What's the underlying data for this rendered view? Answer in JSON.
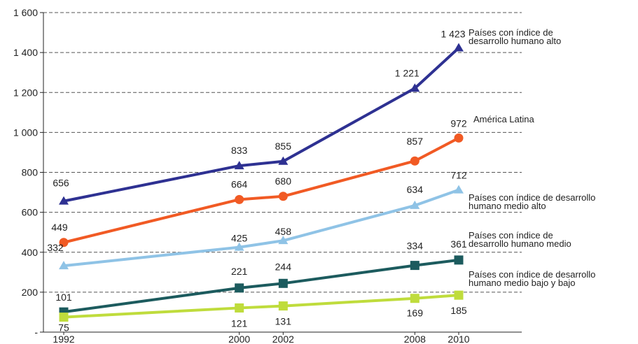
{
  "chart_data": {
    "type": "line",
    "x": [
      1992,
      2000,
      2002,
      2008,
      2010
    ],
    "ylim": [
      0,
      1600
    ],
    "y_ticks": [
      {
        "value": 0,
        "label": "-"
      },
      {
        "value": 200,
        "label": "200"
      },
      {
        "value": 400,
        "label": "400"
      },
      {
        "value": 600,
        "label": "600"
      },
      {
        "value": 800,
        "label": "800"
      },
      {
        "value": 1000,
        "label": "1 000"
      },
      {
        "value": 1200,
        "label": "1 200"
      },
      {
        "value": 1400,
        "label": "1 400"
      },
      {
        "value": 1600,
        "label": "1 600"
      }
    ],
    "x_tick_labels": [
      "1992",
      "2000",
      "2002",
      "2008",
      "2010"
    ],
    "grid": "horizontal dashed",
    "series": [
      {
        "name": "Países con índice de desarrollo humano alto",
        "name_lines": [
          "Países con índice de",
          "desarrollo humano alto"
        ],
        "color": "#2e3192",
        "marker": "triangle",
        "values": [
          656,
          833,
          855,
          1221,
          1423
        ],
        "labels": [
          "656",
          "833",
          "855",
          "1 221",
          "1 423"
        ]
      },
      {
        "name": "América Latina",
        "name_lines": [
          "América Latina"
        ],
        "color": "#f15a24",
        "marker": "circle",
        "values": [
          449,
          664,
          680,
          857,
          972
        ],
        "labels": [
          "449",
          "664",
          "680",
          "857",
          "972"
        ]
      },
      {
        "name": "Países con índice de desarrollo humano medio alto",
        "name_lines": [
          "Países con índice de desarrollo",
          "humano medio alto"
        ],
        "color": "#8fc3e6",
        "marker": "triangle",
        "values": [
          332,
          425,
          458,
          634,
          712
        ],
        "labels": [
          "332",
          "425",
          "458",
          "634",
          "712"
        ]
      },
      {
        "name": "Países con índice de desarrollo humano medio",
        "name_lines": [
          "Países con índice de",
          "desarrollo humano medio"
        ],
        "color": "#1c5b5e",
        "marker": "square",
        "values": [
          101,
          221,
          244,
          334,
          361
        ],
        "labels": [
          "101",
          "221",
          "244",
          "334",
          "361"
        ]
      },
      {
        "name": "Países con índice de desarrollo humano medio bajo y bajo",
        "name_lines": [
          "Países con índice de desarrollo",
          "humano medio bajo y bajo"
        ],
        "color": "#bfdc3c",
        "marker": "square",
        "values": [
          75,
          121,
          131,
          169,
          185
        ],
        "labels": [
          "75",
          "121",
          "131",
          "169",
          "185"
        ]
      }
    ]
  }
}
